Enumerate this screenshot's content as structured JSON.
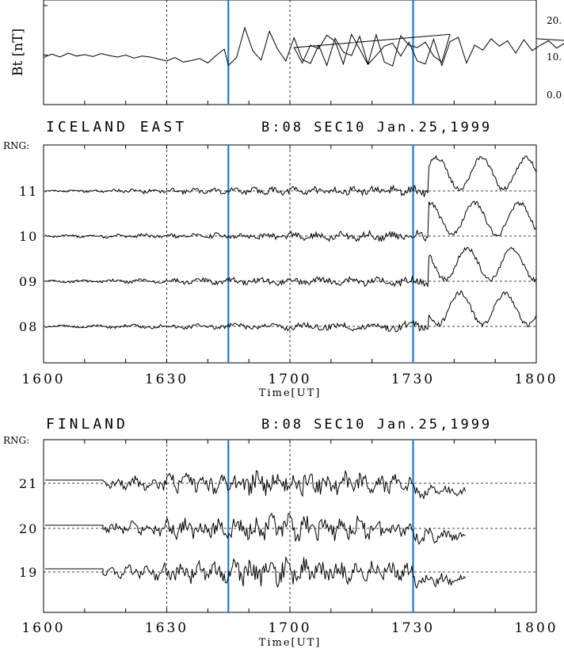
{
  "colors": {
    "event_line": "#1f7bd6",
    "trace": "#000000"
  },
  "chart_data": [
    {
      "type": "line",
      "panel": "bt",
      "ylabel": "Bt [nT]",
      "yticks": [
        "20.",
        "10.",
        "0.0"
      ],
      "ylim": [
        0,
        20
      ],
      "xlim": [
        1600,
        1800
      ],
      "dashed_times": [
        1630,
        1700
      ],
      "event_times": [
        1645,
        1730
      ],
      "series": [
        {
          "x": [
            1600,
            1602,
            1604,
            1606,
            1608,
            1610,
            1612,
            1614,
            1616,
            1618,
            1620,
            1622,
            1624,
            1626,
            1628,
            1630,
            1632,
            1634,
            1636,
            1638,
            1640,
            1642,
            1644,
            1645,
            1647,
            1649,
            1651,
            1653,
            1655,
            1657,
            1659,
            1661,
            1663,
            1665,
            1667,
            1669,
            1671,
            1673,
            1675,
            1677,
            1679,
            1681,
            1683,
            1685,
            1687,
            1689,
            1691,
            1693,
            1695,
            1697,
            1699,
            1701,
            1703,
            1705,
            1707,
            1709,
            1711,
            1713,
            1715,
            1717,
            1719,
            1721,
            1723,
            1725,
            1727,
            1729,
            1731,
            1733,
            1735,
            1737,
            1739,
            1741,
            1743,
            1745,
            1747,
            1749,
            1751,
            1753,
            1755,
            1757,
            1759,
            1761,
            1763,
            1765,
            1767,
            1769,
            1771,
            1773,
            1775,
            1777,
            1779,
            1781,
            1783,
            1785,
            1787,
            1789,
            1791,
            1793,
            1795,
            1797,
            1800
          ],
          "values": [
            9.5,
            10.2,
            9.6,
            10.4,
            9.8,
            10.1,
            9.7,
            10.3,
            9.9,
            9.6,
            10.0,
            9.4,
            9.8,
            9.6,
            9.2,
            8.8,
            9.5,
            8.6,
            8.9,
            9.3,
            8.4,
            9.9,
            11.2,
            7.9,
            9.5,
            15.5,
            10.8,
            9.0,
            14.8,
            11.2,
            8.8,
            13.5,
            9.1,
            8.3,
            12.0,
            7.9,
            13.4,
            10.6,
            9.9,
            13.8,
            8.2,
            14.1,
            8.6,
            7.8,
            13.9,
            12.0,
            11.5,
            12.6,
            9.8,
            8.6,
            14.2,
            11.5,
            8.4,
            12.0,
            11.3,
            14.0,
            12.8,
            8.2,
            14.2,
            11.2,
            8.1,
            9.9,
            11.8,
            12.4,
            9.8,
            12.6,
            8.8,
            8.2,
            13.2,
            7.9,
            12.7,
            13.6,
            8.4,
            12.0,
            11.0,
            13.3,
            11.8,
            12.9,
            10.4,
            13.1,
            10.9,
            12.0,
            12.9,
            11.4,
            12.5,
            12.9,
            13.1,
            12.4,
            13.6,
            12.8,
            12.9,
            14.2,
            13.8,
            13.1,
            13.6,
            12.4,
            13.2,
            13.9,
            12.6,
            11.5,
            13.3
          ]
        }
      ]
    },
    {
      "type": "line",
      "panel": "iceland",
      "title": "ICELAND EAST",
      "subtitle": "B:08 SEC10 Jan.25,1999",
      "rng_label": "RNG:",
      "xlabel": "Time[UT]",
      "xticks": [
        "1600",
        "1630",
        "1700",
        "1730",
        "1800"
      ],
      "xlim": [
        1600,
        1800
      ],
      "dashed_times": [
        1630,
        1700
      ],
      "event_times": [
        1645,
        1730
      ],
      "series": [
        {
          "name": "11",
          "amplitude_scale": 1.0,
          "seed": 11
        },
        {
          "name": "10",
          "amplitude_scale": 1.0,
          "seed": 10
        },
        {
          "name": "09",
          "amplitude_scale": 1.0,
          "seed": 9
        },
        {
          "name": "08",
          "amplitude_scale": 1.0,
          "seed": 8
        }
      ]
    },
    {
      "type": "line",
      "panel": "finland",
      "title": "FINLAND",
      "subtitle": "B:08 SEC10 Jan.25,1999",
      "rng_label": "RNG:",
      "xlabel": "Time[UT]",
      "xticks": [
        "1600",
        "1630",
        "1700",
        "1730",
        "1800"
      ],
      "xlim": [
        1600,
        1800
      ],
      "data_end": 1743,
      "dashed_times": [
        1630,
        1700
      ],
      "event_times": [
        1645,
        1730
      ],
      "series": [
        {
          "name": "21",
          "seed": 21
        },
        {
          "name": "20",
          "seed": 20
        },
        {
          "name": "19",
          "seed": 19
        }
      ]
    }
  ]
}
